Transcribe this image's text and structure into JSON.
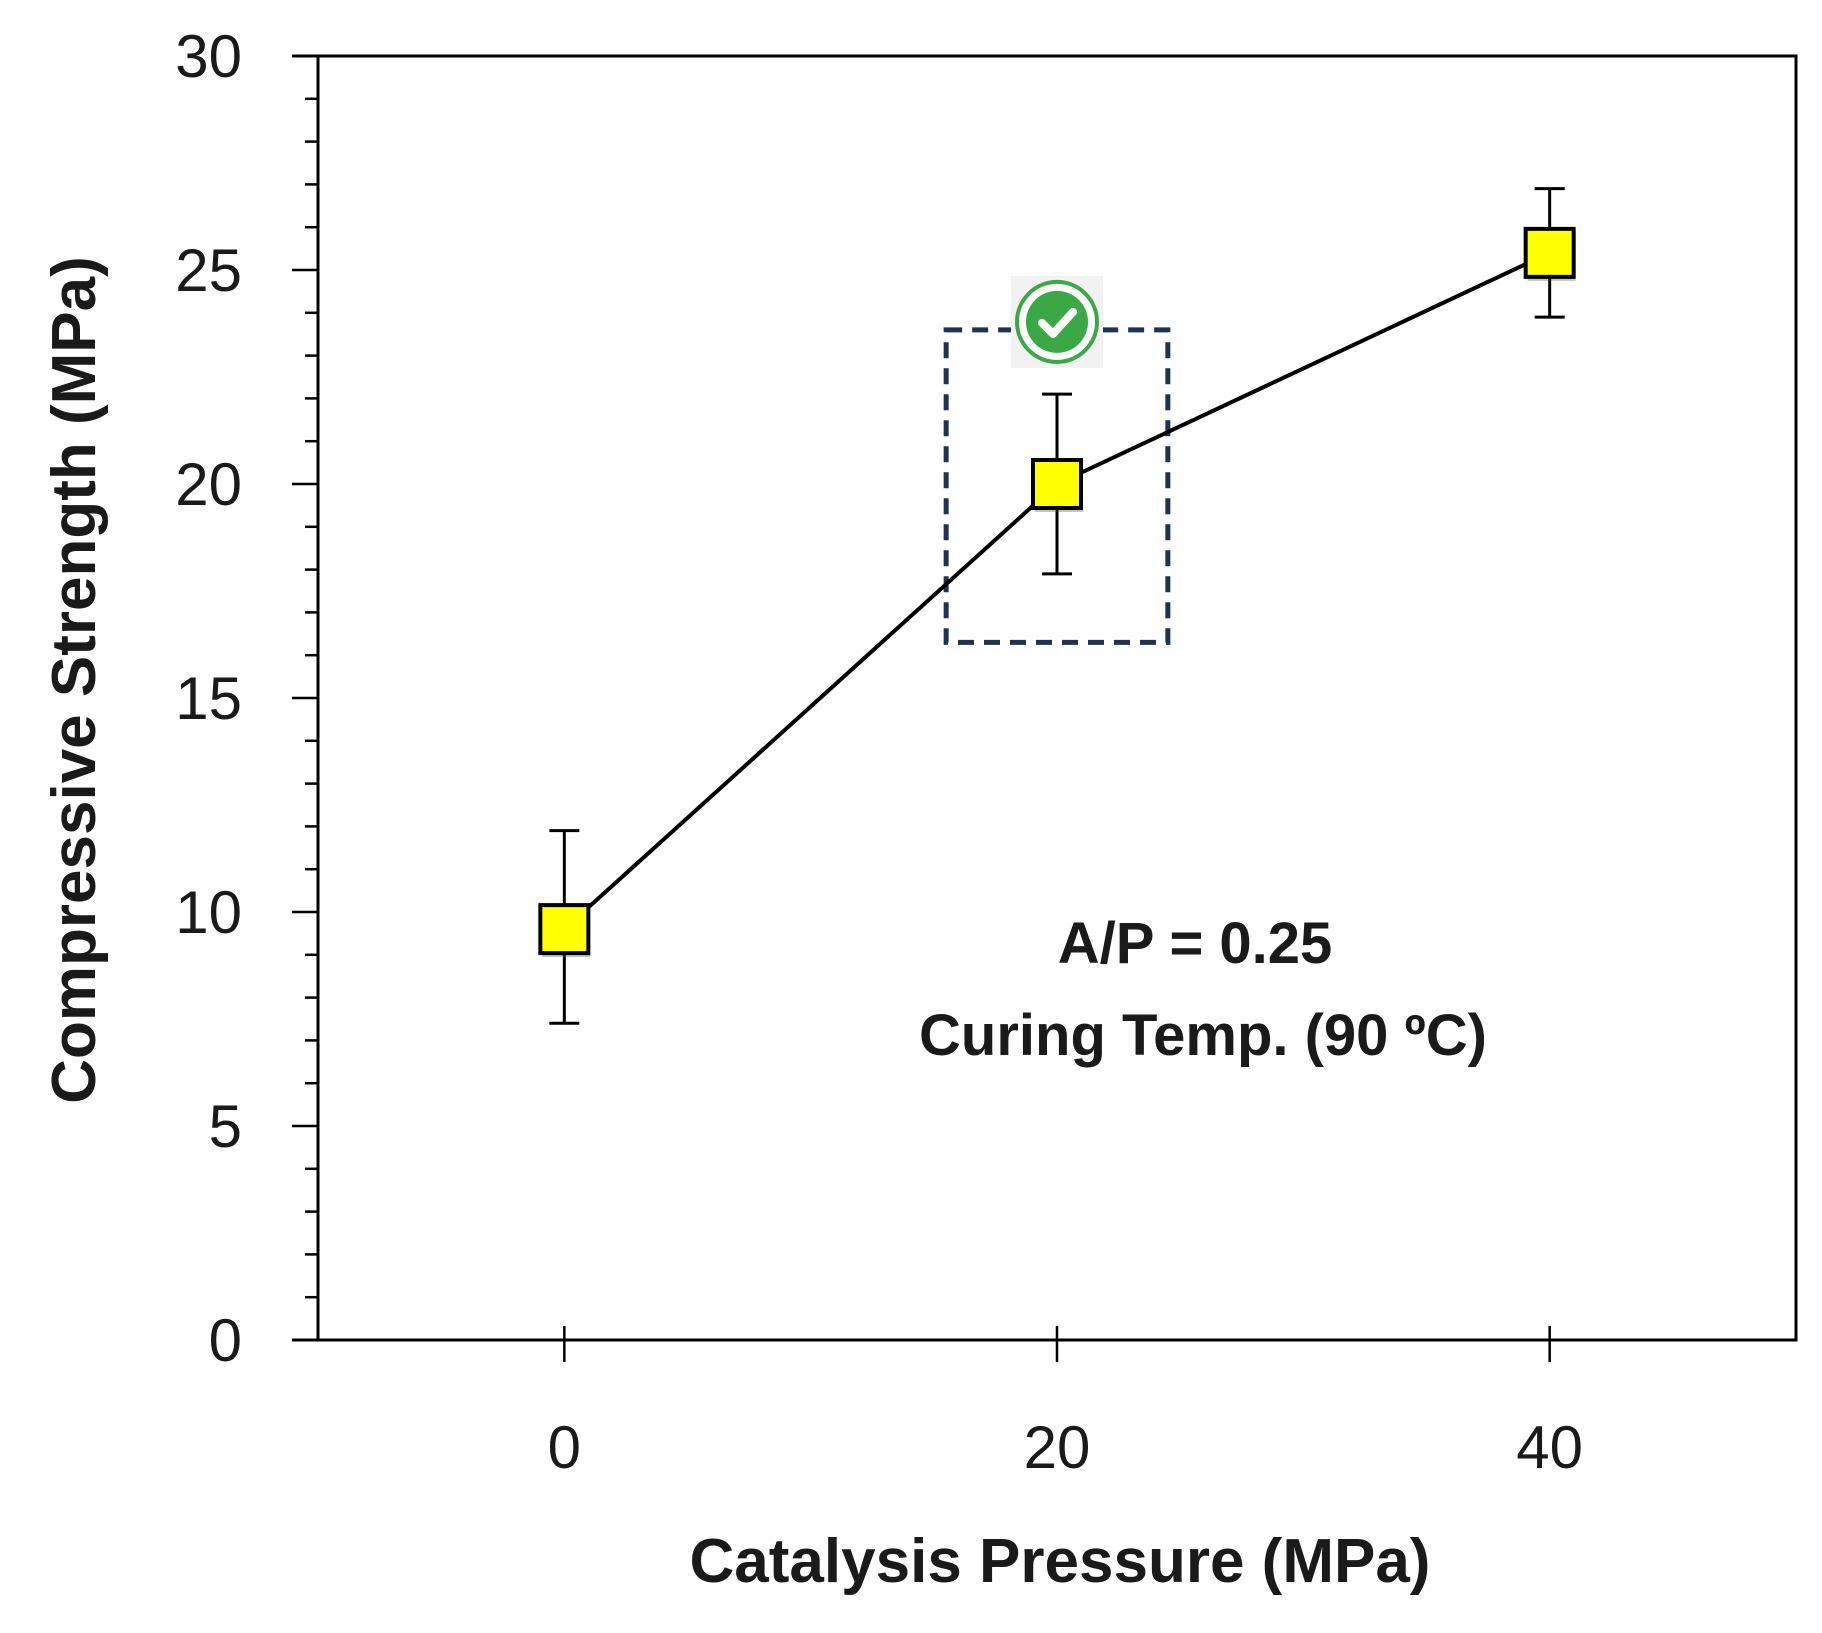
{
  "chart_data": {
    "type": "line",
    "xlabel": "Catalysis Pressure (MPa)",
    "ylabel": "Compressive Strength (MPa)",
    "xlim": [
      -10,
      50
    ],
    "ylim": [
      0,
      30
    ],
    "x_ticks": [
      0,
      20,
      40
    ],
    "y_ticks": [
      0,
      5,
      10,
      15,
      20,
      25,
      30
    ],
    "y_minor_step": 1,
    "grid": false,
    "series": [
      {
        "name": "Compressive Strength",
        "marker": "square",
        "marker_color": "#ffff00",
        "line_color": "#000000",
        "points": [
          {
            "x": 0,
            "y": 9.6,
            "err_low": 7.4,
            "err_high": 11.9
          },
          {
            "x": 20,
            "y": 20.0,
            "err_low": 17.9,
            "err_high": 22.1
          },
          {
            "x": 40,
            "y": 25.4,
            "err_low": 23.9,
            "err_high": 26.9
          }
        ]
      }
    ],
    "highlight": {
      "x_range": [
        15.5,
        24.5
      ],
      "y_range": [
        16.3,
        23.6
      ],
      "color": "#1f3250",
      "badge": "check-circle",
      "badge_color": "#3aa845"
    },
    "annotations": [
      "A/P = 0.25",
      "Curing Temp. (90 ºC)"
    ]
  }
}
